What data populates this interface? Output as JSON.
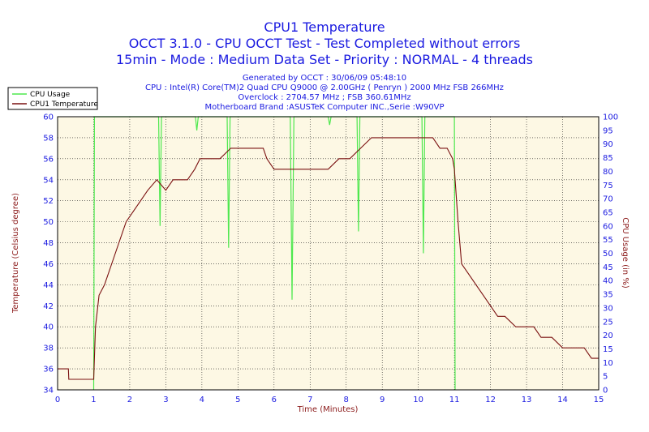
{
  "chart_data": {
    "type": "line",
    "title": "CPU1 Temperature",
    "subtitle1": "OCCT 3.1.0 - CPU OCCT Test - Test Completed without errors",
    "subtitle2": "15min - Mode : Medium Data Set - Priority : NORMAL - 4 threads",
    "info": [
      "Generated by OCCT : 30/06/09 05:48:10",
      "CPU : Intel(R) Core(TM)2 Quad CPU Q9000 @ 2.00GHz ( Penryn ) 2000 MHz FSB 266MHz",
      "Overclock : 2704.57 MHz ; FSB 360.61MHz",
      "Motherboard Brand :ASUSTeK Computer INC.,Serie :W90VP"
    ],
    "xlabel": "Time (Minutes)",
    "ylabel": "Temperature (Celsius degree)",
    "y2label": "CPU Usage (in %)",
    "xlim": [
      0,
      15
    ],
    "ylim": [
      34,
      60
    ],
    "y2lim": [
      0,
      100
    ],
    "x_ticks": [
      0,
      1,
      2,
      3,
      4,
      5,
      6,
      7,
      8,
      9,
      10,
      11,
      12,
      13,
      14,
      15
    ],
    "y_ticks": [
      34,
      36,
      38,
      40,
      42,
      44,
      46,
      48,
      50,
      52,
      54,
      56,
      58,
      60
    ],
    "y2_ticks": [
      0,
      5,
      10,
      15,
      20,
      25,
      30,
      35,
      40,
      45,
      50,
      55,
      60,
      65,
      70,
      75,
      80,
      85,
      90,
      95,
      100
    ],
    "grid": true,
    "legend_position": "top-left",
    "colors": {
      "temperature": "#7a1010",
      "usage": "#4ee84e",
      "plot_bg": "#fdf8e4",
      "grid": "#1a1a1a",
      "text": "#1a1ae0",
      "axis_label": "#8b1a1a"
    },
    "series": [
      {
        "name": "CPU Usage",
        "axis": "right",
        "points": [
          [
            1.0,
            0
          ],
          [
            1.02,
            100
          ],
          [
            2.8,
            100
          ],
          [
            2.84,
            60
          ],
          [
            2.88,
            100
          ],
          [
            3.82,
            100
          ],
          [
            3.86,
            95
          ],
          [
            3.9,
            100
          ],
          [
            4.7,
            100
          ],
          [
            4.74,
            52
          ],
          [
            4.78,
            100
          ],
          [
            6.45,
            100
          ],
          [
            6.5,
            33
          ],
          [
            6.55,
            100
          ],
          [
            7.5,
            100
          ],
          [
            7.54,
            97
          ],
          [
            7.58,
            100
          ],
          [
            8.3,
            100
          ],
          [
            8.34,
            58
          ],
          [
            8.38,
            100
          ],
          [
            10.1,
            100
          ],
          [
            10.14,
            50
          ],
          [
            10.18,
            100
          ],
          [
            11.0,
            100
          ],
          [
            11.02,
            0
          ]
        ]
      },
      {
        "name": "CPU1 Temperature",
        "axis": "left",
        "points": [
          [
            0,
            36
          ],
          [
            0.3,
            36
          ],
          [
            0.31,
            35
          ],
          [
            1.0,
            35
          ],
          [
            1.05,
            40
          ],
          [
            1.15,
            43
          ],
          [
            1.3,
            44
          ],
          [
            1.5,
            46
          ],
          [
            1.7,
            48
          ],
          [
            1.9,
            50
          ],
          [
            2.1,
            51
          ],
          [
            2.3,
            52
          ],
          [
            2.5,
            53
          ],
          [
            2.75,
            54
          ],
          [
            3.0,
            53
          ],
          [
            3.2,
            54
          ],
          [
            3.4,
            54
          ],
          [
            3.6,
            54
          ],
          [
            3.8,
            55
          ],
          [
            3.95,
            56
          ],
          [
            4.2,
            56
          ],
          [
            4.5,
            56
          ],
          [
            4.8,
            57
          ],
          [
            5.1,
            57
          ],
          [
            5.4,
            57
          ],
          [
            5.7,
            57
          ],
          [
            5.8,
            56
          ],
          [
            6.0,
            55
          ],
          [
            6.3,
            55
          ],
          [
            6.6,
            55
          ],
          [
            7.0,
            55
          ],
          [
            7.5,
            55
          ],
          [
            7.8,
            56
          ],
          [
            8.1,
            56
          ],
          [
            8.4,
            57
          ],
          [
            8.7,
            58
          ],
          [
            9.0,
            58
          ],
          [
            9.3,
            58
          ],
          [
            9.6,
            58
          ],
          [
            9.9,
            58
          ],
          [
            10.2,
            58
          ],
          [
            10.4,
            58
          ],
          [
            10.6,
            57
          ],
          [
            10.8,
            57
          ],
          [
            10.95,
            56
          ],
          [
            11.0,
            55
          ],
          [
            11.1,
            50
          ],
          [
            11.2,
            46
          ],
          [
            11.4,
            45
          ],
          [
            11.6,
            44
          ],
          [
            11.8,
            43
          ],
          [
            12.0,
            42
          ],
          [
            12.2,
            41
          ],
          [
            12.4,
            41
          ],
          [
            12.7,
            40
          ],
          [
            13.0,
            40
          ],
          [
            13.2,
            40
          ],
          [
            13.4,
            39
          ],
          [
            13.7,
            39
          ],
          [
            14.0,
            38
          ],
          [
            14.3,
            38
          ],
          [
            14.6,
            38
          ],
          [
            14.8,
            37
          ],
          [
            15.0,
            37
          ]
        ]
      }
    ]
  }
}
